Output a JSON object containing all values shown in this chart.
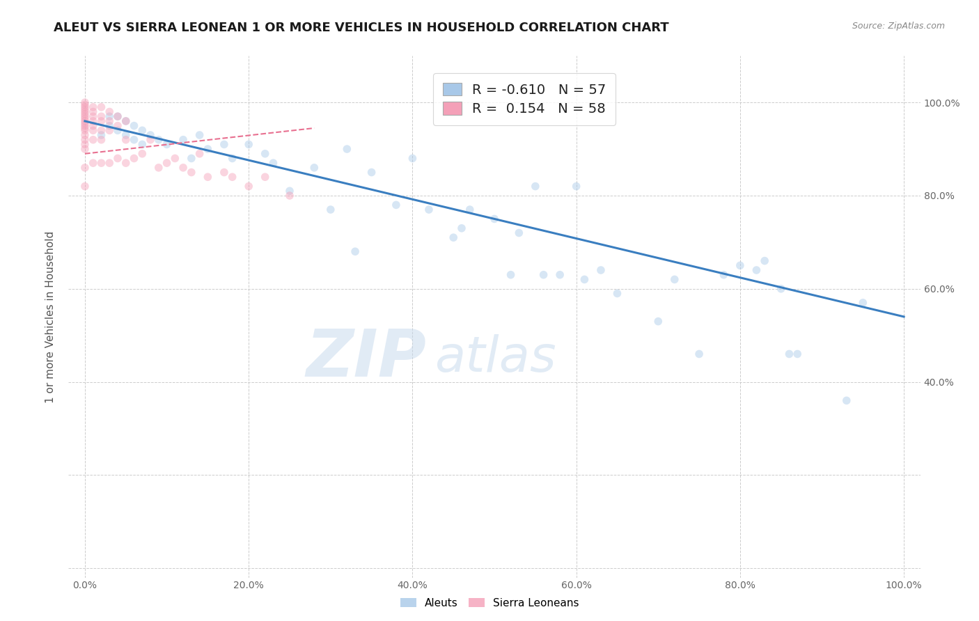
{
  "title": "ALEUT VS SIERRA LEONEAN 1 OR MORE VEHICLES IN HOUSEHOLD CORRELATION CHART",
  "source": "Source: ZipAtlas.com",
  "ylabel_label": "1 or more Vehicles in Household",
  "xlim": [
    -0.02,
    1.02
  ],
  "ylim": [
    -0.02,
    1.1
  ],
  "xticks": [
    0.0,
    0.2,
    0.4,
    0.6,
    0.8,
    1.0
  ],
  "yticks": [
    0.0,
    0.2,
    0.4,
    0.6,
    0.8,
    1.0
  ],
  "xticklabels": [
    "0.0%",
    "20.0%",
    "40.0%",
    "60.0%",
    "80.0%",
    "100.0%"
  ],
  "right_yticklabels": [
    "",
    "40.0%",
    "60.0%",
    "80.0%",
    "100.0%"
  ],
  "legend_R1": "R = ",
  "legend_V1": "-0.610",
  "legend_N1": "   N = ",
  "legend_NV1": "57",
  "legend_R2": "R =  ",
  "legend_V2": "0.154",
  "legend_N2": "   N = ",
  "legend_NV2": "58",
  "blue_scatter": [
    [
      0.02,
      0.93
    ],
    [
      0.03,
      0.97
    ],
    [
      0.03,
      0.95
    ],
    [
      0.04,
      0.97
    ],
    [
      0.04,
      0.94
    ],
    [
      0.05,
      0.96
    ],
    [
      0.05,
      0.93
    ],
    [
      0.06,
      0.95
    ],
    [
      0.06,
      0.92
    ],
    [
      0.07,
      0.94
    ],
    [
      0.07,
      0.91
    ],
    [
      0.08,
      0.93
    ],
    [
      0.09,
      0.92
    ],
    [
      0.1,
      0.91
    ],
    [
      0.12,
      0.92
    ],
    [
      0.13,
      0.88
    ],
    [
      0.14,
      0.93
    ],
    [
      0.15,
      0.9
    ],
    [
      0.17,
      0.91
    ],
    [
      0.18,
      0.88
    ],
    [
      0.2,
      0.91
    ],
    [
      0.22,
      0.89
    ],
    [
      0.23,
      0.87
    ],
    [
      0.25,
      0.81
    ],
    [
      0.28,
      0.86
    ],
    [
      0.3,
      0.77
    ],
    [
      0.32,
      0.9
    ],
    [
      0.33,
      0.68
    ],
    [
      0.35,
      0.85
    ],
    [
      0.38,
      0.78
    ],
    [
      0.4,
      0.88
    ],
    [
      0.42,
      0.77
    ],
    [
      0.45,
      0.71
    ],
    [
      0.46,
      0.73
    ],
    [
      0.47,
      0.77
    ],
    [
      0.5,
      0.75
    ],
    [
      0.52,
      0.63
    ],
    [
      0.53,
      0.72
    ],
    [
      0.55,
      0.82
    ],
    [
      0.56,
      0.63
    ],
    [
      0.58,
      0.63
    ],
    [
      0.6,
      0.82
    ],
    [
      0.61,
      0.62
    ],
    [
      0.63,
      0.64
    ],
    [
      0.65,
      0.59
    ],
    [
      0.7,
      0.53
    ],
    [
      0.72,
      0.62
    ],
    [
      0.75,
      0.46
    ],
    [
      0.78,
      0.63
    ],
    [
      0.8,
      0.65
    ],
    [
      0.82,
      0.64
    ],
    [
      0.83,
      0.66
    ],
    [
      0.85,
      0.6
    ],
    [
      0.86,
      0.46
    ],
    [
      0.87,
      0.46
    ],
    [
      0.93,
      0.36
    ],
    [
      0.95,
      0.57
    ]
  ],
  "pink_scatter": [
    [
      0.0,
      1.0
    ],
    [
      0.0,
      0.995
    ],
    [
      0.0,
      0.99
    ],
    [
      0.0,
      0.985
    ],
    [
      0.0,
      0.98
    ],
    [
      0.0,
      0.975
    ],
    [
      0.0,
      0.97
    ],
    [
      0.0,
      0.965
    ],
    [
      0.0,
      0.96
    ],
    [
      0.0,
      0.955
    ],
    [
      0.0,
      0.95
    ],
    [
      0.0,
      0.945
    ],
    [
      0.0,
      0.94
    ],
    [
      0.0,
      0.93
    ],
    [
      0.0,
      0.92
    ],
    [
      0.0,
      0.91
    ],
    [
      0.0,
      0.9
    ],
    [
      0.0,
      0.86
    ],
    [
      0.0,
      0.82
    ],
    [
      0.01,
      0.99
    ],
    [
      0.01,
      0.98
    ],
    [
      0.01,
      0.97
    ],
    [
      0.01,
      0.96
    ],
    [
      0.01,
      0.95
    ],
    [
      0.01,
      0.94
    ],
    [
      0.01,
      0.92
    ],
    [
      0.01,
      0.87
    ],
    [
      0.02,
      0.99
    ],
    [
      0.02,
      0.97
    ],
    [
      0.02,
      0.96
    ],
    [
      0.02,
      0.94
    ],
    [
      0.02,
      0.92
    ],
    [
      0.02,
      0.87
    ],
    [
      0.03,
      0.98
    ],
    [
      0.03,
      0.96
    ],
    [
      0.03,
      0.94
    ],
    [
      0.03,
      0.87
    ],
    [
      0.04,
      0.97
    ],
    [
      0.04,
      0.95
    ],
    [
      0.04,
      0.88
    ],
    [
      0.05,
      0.96
    ],
    [
      0.05,
      0.92
    ],
    [
      0.05,
      0.87
    ],
    [
      0.06,
      0.88
    ],
    [
      0.07,
      0.89
    ],
    [
      0.08,
      0.92
    ],
    [
      0.09,
      0.86
    ],
    [
      0.1,
      0.87
    ],
    [
      0.11,
      0.88
    ],
    [
      0.12,
      0.86
    ],
    [
      0.13,
      0.85
    ],
    [
      0.14,
      0.89
    ],
    [
      0.15,
      0.84
    ],
    [
      0.17,
      0.85
    ],
    [
      0.18,
      0.84
    ],
    [
      0.2,
      0.82
    ],
    [
      0.22,
      0.84
    ],
    [
      0.25,
      0.8
    ]
  ],
  "blue_line": {
    "x": [
      0.0,
      1.0
    ],
    "y": [
      0.96,
      0.54
    ]
  },
  "pink_line": {
    "x": [
      0.0,
      0.28
    ],
    "y": [
      0.89,
      0.945
    ]
  },
  "scatter_size": 70,
  "scatter_alpha": 0.45,
  "blue_color": "#a8c8e8",
  "pink_color": "#f4a0b8",
  "blue_line_color": "#3a7ec0",
  "pink_line_color": "#e87090",
  "watermark_text": "ZIP",
  "watermark_text2": "atlas",
  "grid_color": "#cccccc",
  "background_color": "#ffffff",
  "value_color": "#3060c0",
  "n_color": "#3060c0"
}
